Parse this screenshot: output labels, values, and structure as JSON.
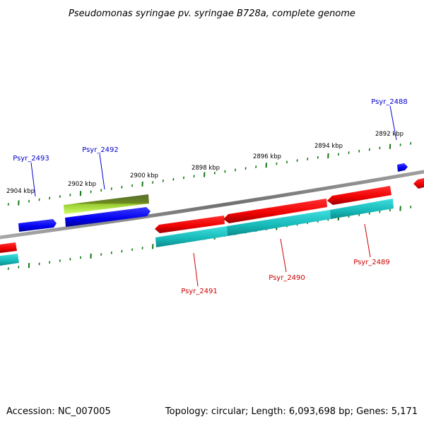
{
  "title": "Pseudomonas syringae pv. syringae B728a, complete genome",
  "footer": {
    "accession": "Accession: NC_007005",
    "topology": "Topology: circular; Length: 6,093,698 bp; Genes: 5,171"
  },
  "colors": {
    "forward_gene": "#0000ff",
    "reverse_gene": "#ff0000",
    "cds_forward": "#66cc00",
    "cds_reverse": "#22cccc",
    "backbone": "#808080",
    "ticks": "#117711"
  },
  "kbp_labels": [
    "2904 kbp",
    "2902 kbp",
    "2900 kbp",
    "2898 kbp",
    "2896 kbp",
    "2894 kbp",
    "2892 kbp"
  ],
  "genes": [
    {
      "label": "Psyr_2493",
      "strand": "+"
    },
    {
      "label": "Psyr_2492",
      "strand": "+"
    },
    {
      "label": "Psyr_2491",
      "strand": "-"
    },
    {
      "label": "Psyr_2490",
      "strand": "-"
    },
    {
      "label": "Psyr_2489",
      "strand": "-"
    },
    {
      "label": "Psyr_2488",
      "strand": "+"
    }
  ]
}
